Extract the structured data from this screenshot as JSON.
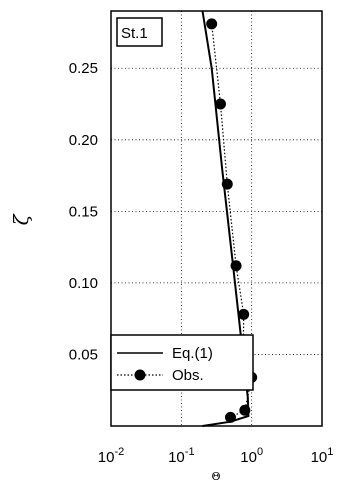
{
  "chart_data": {
    "type": "line",
    "station_label": "St.1",
    "xlabel": "Θ",
    "ylabel": "ζ",
    "x_scale": "log",
    "xlim": [
      0.01,
      10
    ],
    "ylim": [
      0.0,
      0.29
    ],
    "grid": true,
    "x_ticks": [
      {
        "value": 0.01,
        "base": "10",
        "exp": "-2"
      },
      {
        "value": 0.1,
        "base": "10",
        "exp": "-1"
      },
      {
        "value": 1,
        "base": "10",
        "exp": "0"
      },
      {
        "value": 10,
        "base": "10",
        "exp": "1"
      }
    ],
    "y_ticks": [
      {
        "value": 0.05,
        "label": "0.05"
      },
      {
        "value": 0.1,
        "label": "0.10"
      },
      {
        "value": 0.15,
        "label": "0.15"
      },
      {
        "value": 0.2,
        "label": "0.20"
      },
      {
        "value": 0.25,
        "label": "0.25"
      }
    ],
    "legend": {
      "placement": "bottom-left"
    },
    "series": [
      {
        "name": "Eq.(1)",
        "style": "solid",
        "x": [
          0.2,
          0.27,
          0.38,
          0.55,
          0.75,
          0.88,
          0.9,
          0.5,
          0.2
        ],
        "y": [
          0.29,
          0.25,
          0.18,
          0.11,
          0.05,
          0.02,
          0.007,
          0.003,
          0.0
        ]
      },
      {
        "name": "Obs.",
        "style": "dotted",
        "marker": "circle",
        "x": [
          0.27,
          0.36,
          0.45,
          0.6,
          0.77,
          0.76,
          0.74,
          1.0,
          0.8,
          0.5
        ],
        "y": [
          0.281,
          0.225,
          0.169,
          0.112,
          0.078,
          0.056,
          0.046,
          0.034,
          0.011,
          0.006
        ]
      }
    ]
  }
}
